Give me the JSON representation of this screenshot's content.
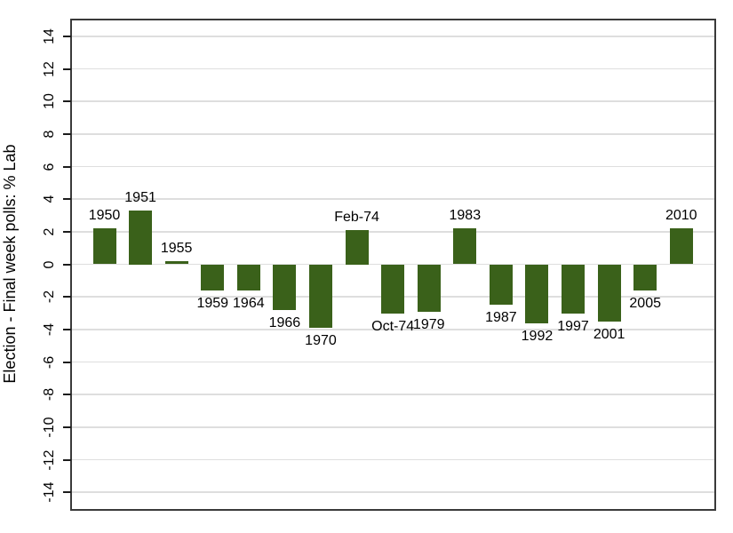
{
  "chart_data": {
    "type": "bar",
    "title": "",
    "xlabel": "",
    "ylabel": "Election - Final week polls: % Lab",
    "categories": [
      "1950",
      "1951",
      "1955",
      "1959",
      "1964",
      "1966",
      "1970",
      "Feb-74",
      "Oct-74",
      "1979",
      "1983",
      "1987",
      "1992",
      "1997",
      "2001",
      "2005",
      "2010"
    ],
    "values": [
      2.2,
      3.3,
      0.2,
      -1.6,
      -1.6,
      -2.8,
      -3.9,
      2.1,
      -3.0,
      -2.9,
      2.2,
      -2.5,
      -3.6,
      -3.0,
      -3.5,
      -1.6,
      2.2
    ],
    "bar_labels_follow_sign": "above bar when positive, below bar when negative",
    "yticks": [
      14,
      12,
      10,
      8,
      6,
      4,
      2,
      0,
      -2,
      -4,
      -6,
      -8,
      -10,
      -12,
      -14
    ],
    "ylim": [
      -15,
      15
    ],
    "grid": true,
    "legend": "none",
    "colors": {
      "bar": "#3a611a",
      "grid": "#dedede",
      "frame": "#3a3a3a",
      "tick": "#1c1c1c",
      "text": "#000000",
      "background": "#ffffff"
    }
  }
}
